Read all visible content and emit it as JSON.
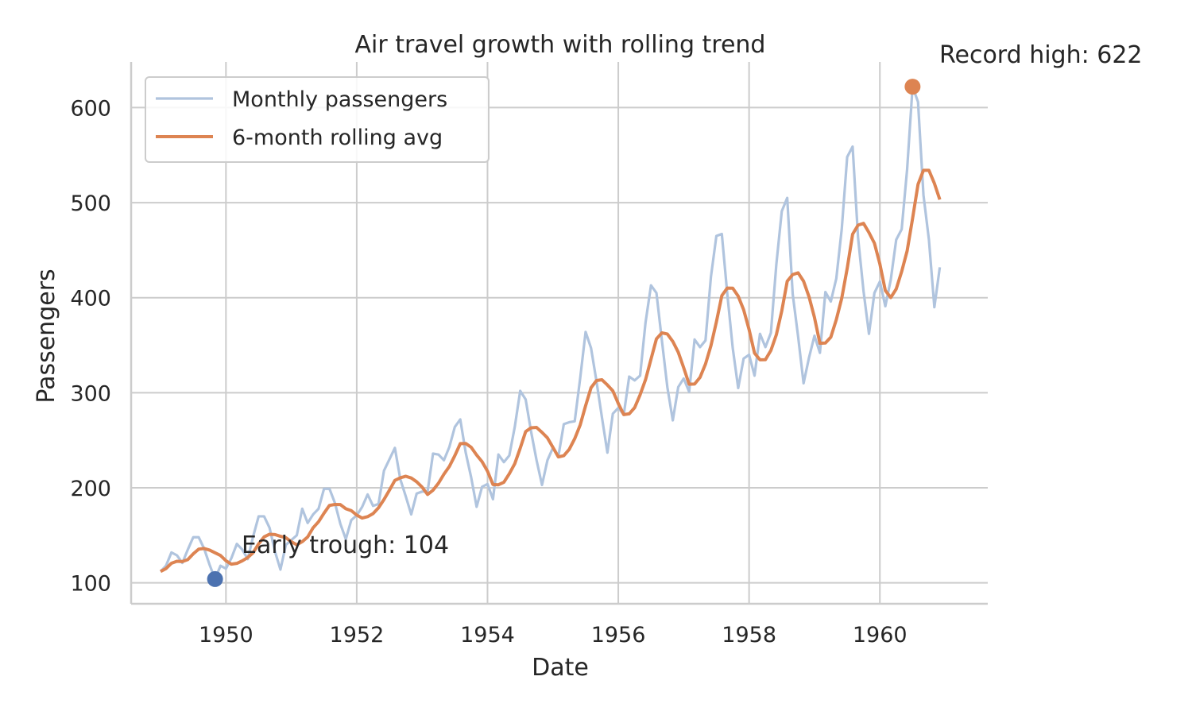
{
  "chart_data": {
    "type": "line",
    "title": "Air travel growth with rolling trend",
    "xlabel": "Date",
    "ylabel": "Passengers",
    "xlim": [
      1948.55,
      1961.65
    ],
    "ylim": [
      78,
      648
    ],
    "xticks": [
      1950,
      1952,
      1954,
      1956,
      1958,
      1960
    ],
    "yticks": [
      100,
      200,
      300,
      400,
      500,
      600
    ],
    "grid": true,
    "legend": "top-left",
    "x_start": "1949-01",
    "x_step": "1 month",
    "series": [
      {
        "name": "Monthly passengers",
        "color": "#b0c4de",
        "values": [
          112,
          118,
          132,
          129,
          121,
          135,
          148,
          148,
          136,
          119,
          104,
          118,
          115,
          126,
          141,
          135,
          125,
          149,
          170,
          170,
          158,
          133,
          114,
          140,
          145,
          150,
          178,
          163,
          172,
          178,
          199,
          199,
          184,
          162,
          146,
          166,
          171,
          180,
          193,
          181,
          183,
          218,
          230,
          242,
          209,
          191,
          172,
          194,
          196,
          196,
          236,
          235,
          229,
          243,
          264,
          272,
          237,
          211,
          180,
          201,
          204,
          188,
          235,
          227,
          234,
          264,
          302,
          293,
          259,
          229,
          203,
          229,
          242,
          233,
          267,
          269,
          270,
          315,
          364,
          347,
          312,
          274,
          237,
          278,
          284,
          277,
          317,
          313,
          318,
          374,
          413,
          405,
          355,
          306,
          271,
          306,
          315,
          301,
          356,
          348,
          355,
          422,
          465,
          467,
          404,
          347,
          305,
          336,
          340,
          318,
          362,
          348,
          363,
          435,
          491,
          505,
          404,
          359,
          310,
          337,
          360,
          342,
          406,
          396,
          420,
          472,
          548,
          559,
          463,
          407,
          362,
          405,
          417,
          391,
          419,
          461,
          472,
          535,
          622,
          606,
          508,
          461,
          390,
          432
        ]
      },
      {
        "name": "6-month rolling avg",
        "color": "#dd8452",
        "window": 6,
        "min_periods": 1
      }
    ],
    "annotations": [
      {
        "text": "Record high: 622",
        "x": "1960-07",
        "y": 622,
        "marker_color": "#dd8452"
      },
      {
        "text": "Early trough: 104",
        "x": "1949-11",
        "y": 104,
        "marker_color": "#4c72b0"
      }
    ]
  }
}
